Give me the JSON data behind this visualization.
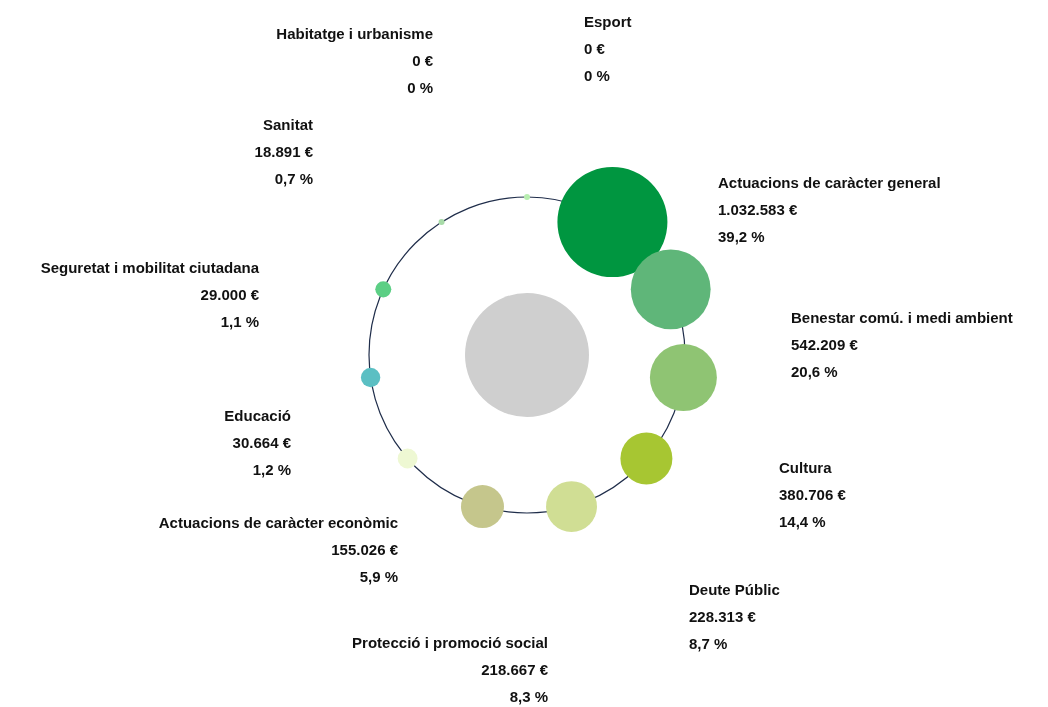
{
  "chart_data": {
    "type": "other",
    "categories": [
      "Esport",
      "Actuacions de caràcter general",
      "Benestar comú. i medi ambient",
      "Cultura",
      "Deute Públic",
      "Protecció i promoció social",
      "Actuacions de caràcter econòmic",
      "Educació",
      "Seguretat i mobilitat ciutadana",
      "Sanitat",
      "Habitatge i urbanisme"
    ],
    "colors": [
      "#b8eeb0",
      "#009640",
      "#5fb679",
      "#8fc473",
      "#a7c632",
      "#d0de94",
      "#c5c68c",
      "#eef8d3",
      "#5bbfc3",
      "#5ccf85",
      "#a8dba8"
    ],
    "series": [
      {
        "values": [
          0,
          1032583,
          542209,
          380706,
          228313,
          218667,
          155026,
          30664,
          29000,
          18891,
          0
        ],
        "value_labels": [
          "0 €",
          "1.032.583 €",
          "542.209 €",
          "380.706 €",
          "228.313 €",
          "218.667 €",
          "155.026 €",
          "30.664 €",
          "29.000 €",
          "18.891 €",
          "0 €"
        ]
      },
      {
        "values": [
          0,
          39.2,
          20.6,
          14.4,
          8.7,
          8.3,
          5.9,
          1.2,
          1.1,
          0.7,
          0
        ],
        "value_labels": [
          "0 %",
          "39,2 %",
          "20,6 %",
          "14,4 %",
          "8,7 %",
          "8,3 %",
          "5,9 %",
          "1,2 %",
          "1,1 %",
          "0,7 %",
          "0 %"
        ]
      }
    ]
  }
}
